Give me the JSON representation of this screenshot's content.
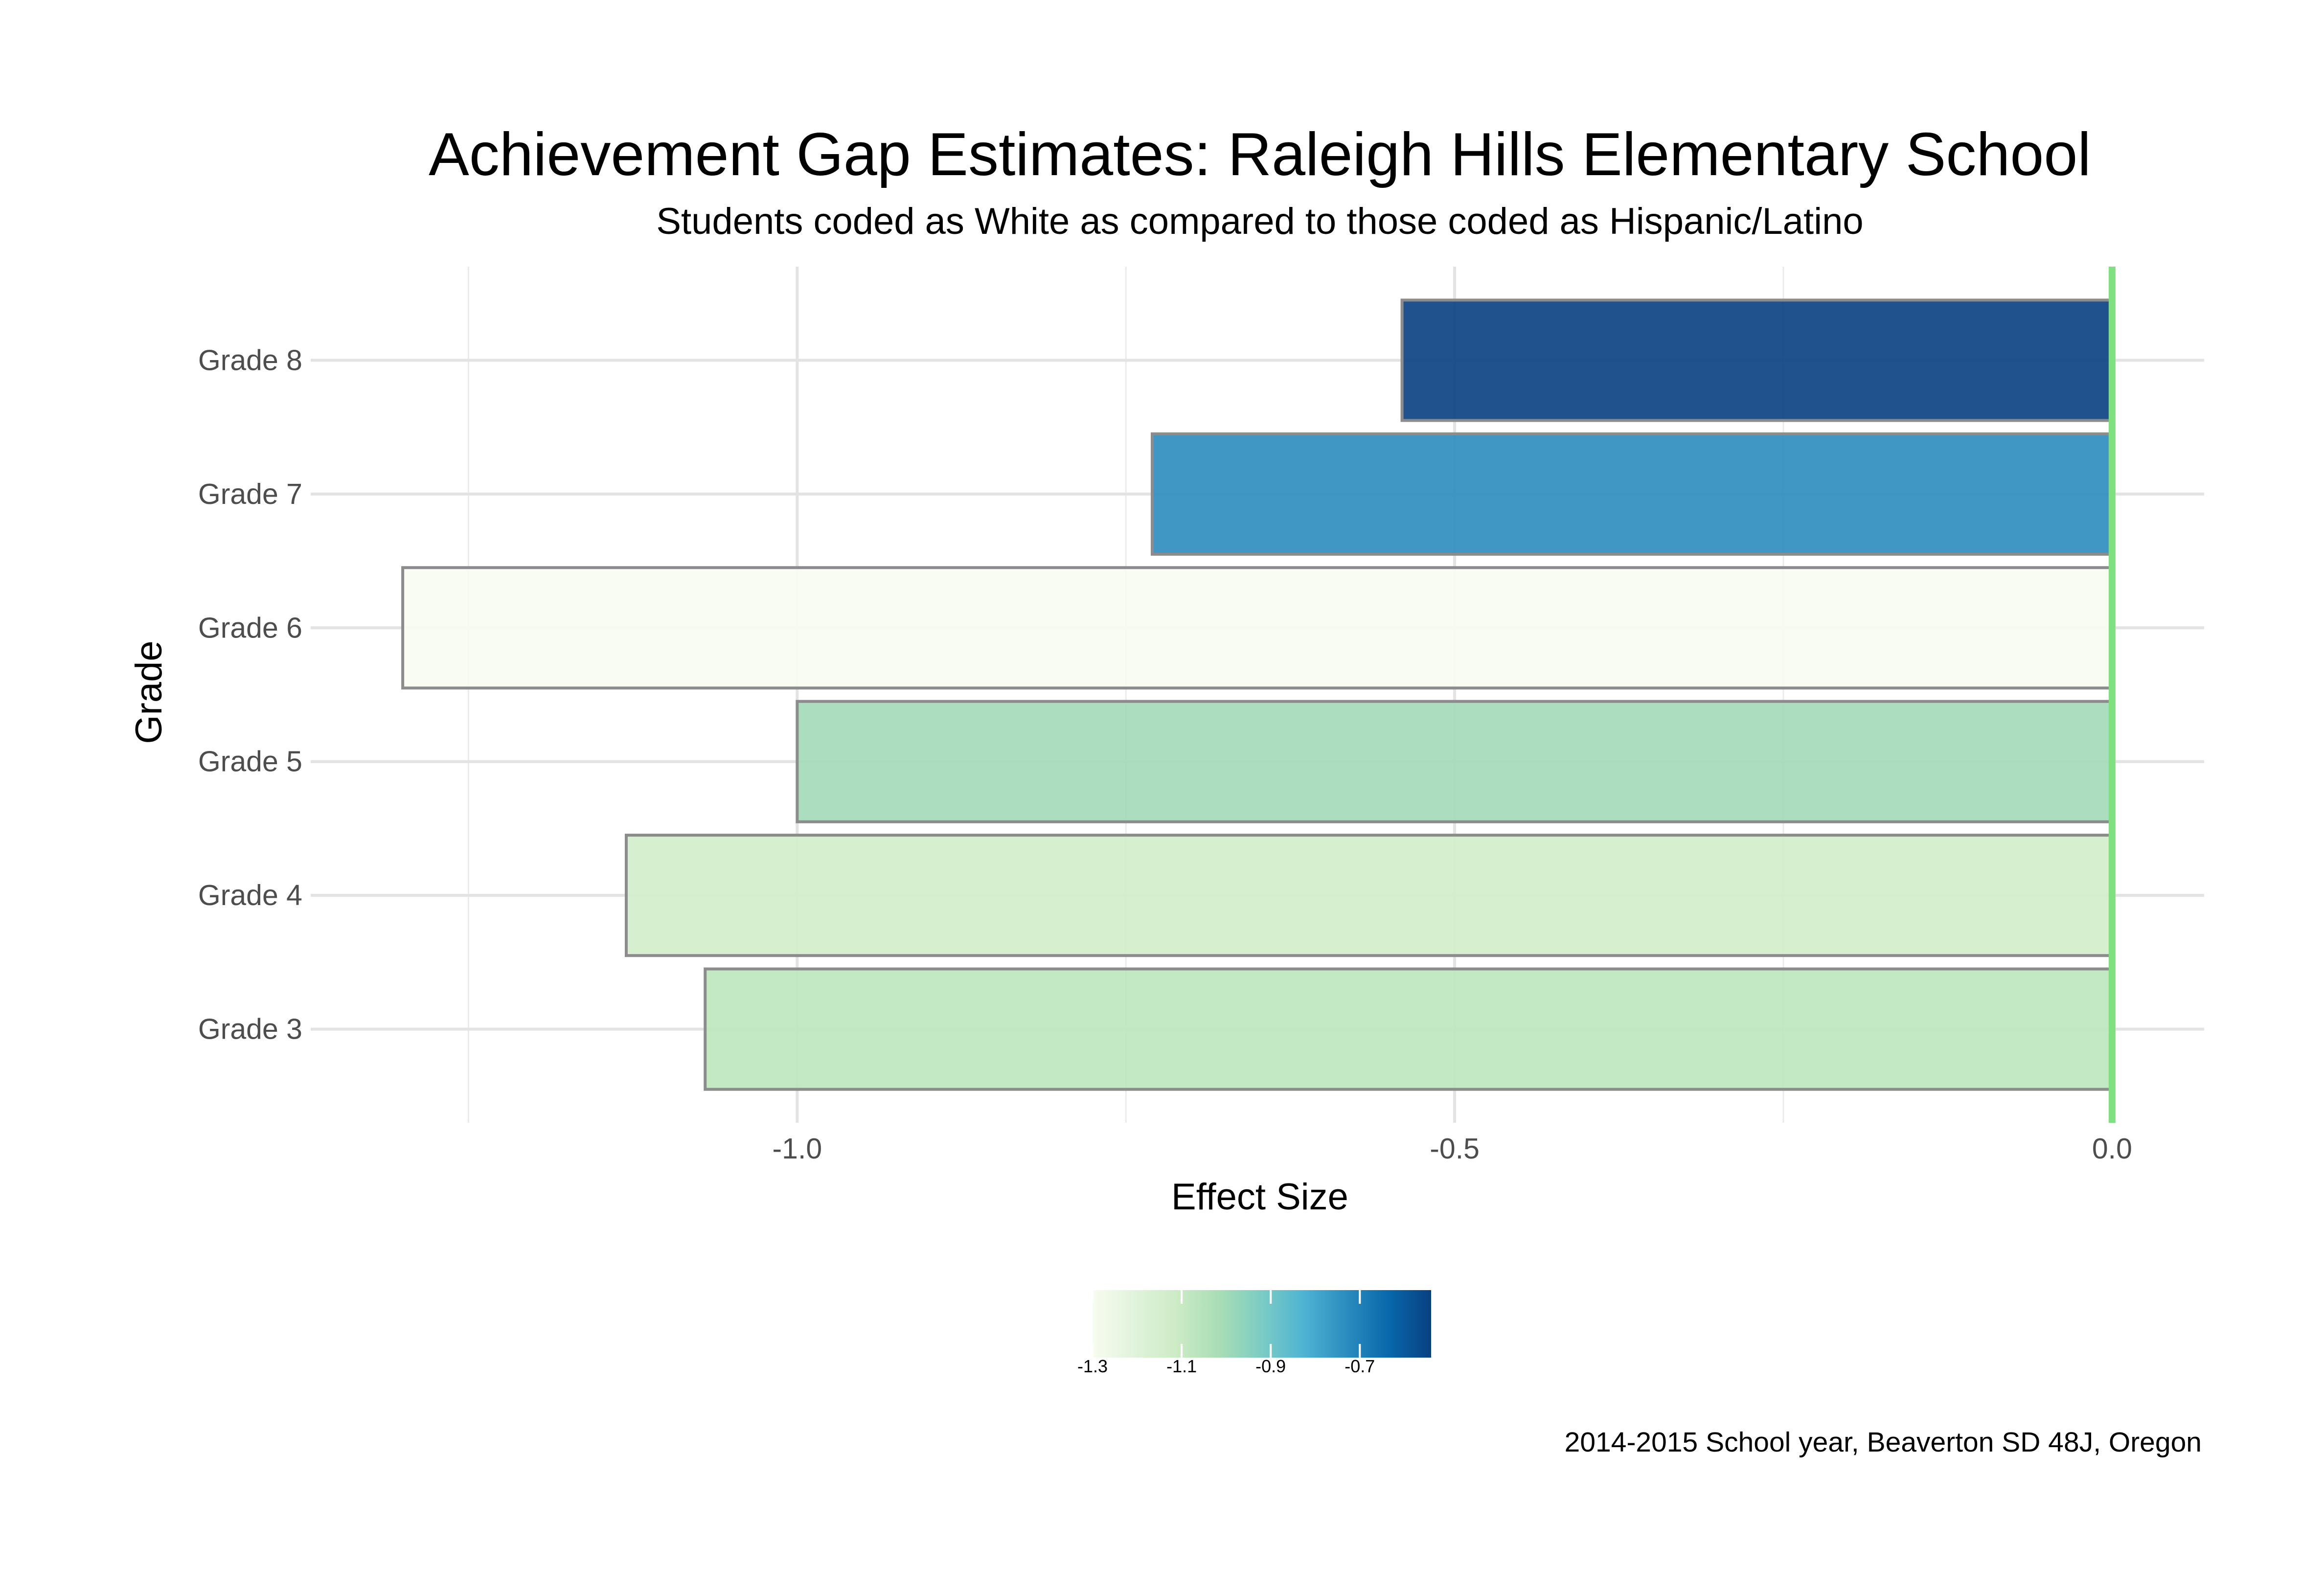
{
  "chart_data": {
    "type": "bar",
    "orientation": "horizontal",
    "title": "Achievement Gap Estimates: Raleigh Hills Elementary School",
    "subtitle": "Students coded as White as compared to those coded as Hispanic/Latino",
    "xlabel": "Effect Size",
    "ylabel": "Grade",
    "categories": [
      "Grade 3",
      "Grade 4",
      "Grade 5",
      "Grade 6",
      "Grade 7",
      "Grade 8"
    ],
    "values": [
      -1.07,
      -1.13,
      -1.0,
      -1.3,
      -0.73,
      -0.54
    ],
    "xlim": [
      -1.37,
      0.07
    ],
    "x_ticks": [
      -1.0,
      -0.5,
      0.0
    ],
    "x_tick_labels": [
      "-1.0",
      "-0.5",
      "0.0"
    ],
    "reference_line": {
      "x": 0,
      "color": "#7fe07f"
    },
    "grid": true,
    "legend": {
      "position": "bottom",
      "type": "colorbar",
      "range": [
        -1.3,
        -0.54
      ],
      "ticks": [
        -1.3,
        -1.1,
        -0.9,
        -0.7
      ],
      "tick_labels": [
        "-1.3",
        "-1.1",
        "-0.9",
        "-0.7"
      ],
      "colors": [
        "#f7fcf0",
        "#e0f3db",
        "#ccebc5",
        "#a8ddb5",
        "#7bccc4",
        "#4eb3d3",
        "#2b8cbe",
        "#0868ac",
        "#084081"
      ]
    },
    "caption": "2014-2015 School year, Beaverton SD 48J, Oregon"
  }
}
